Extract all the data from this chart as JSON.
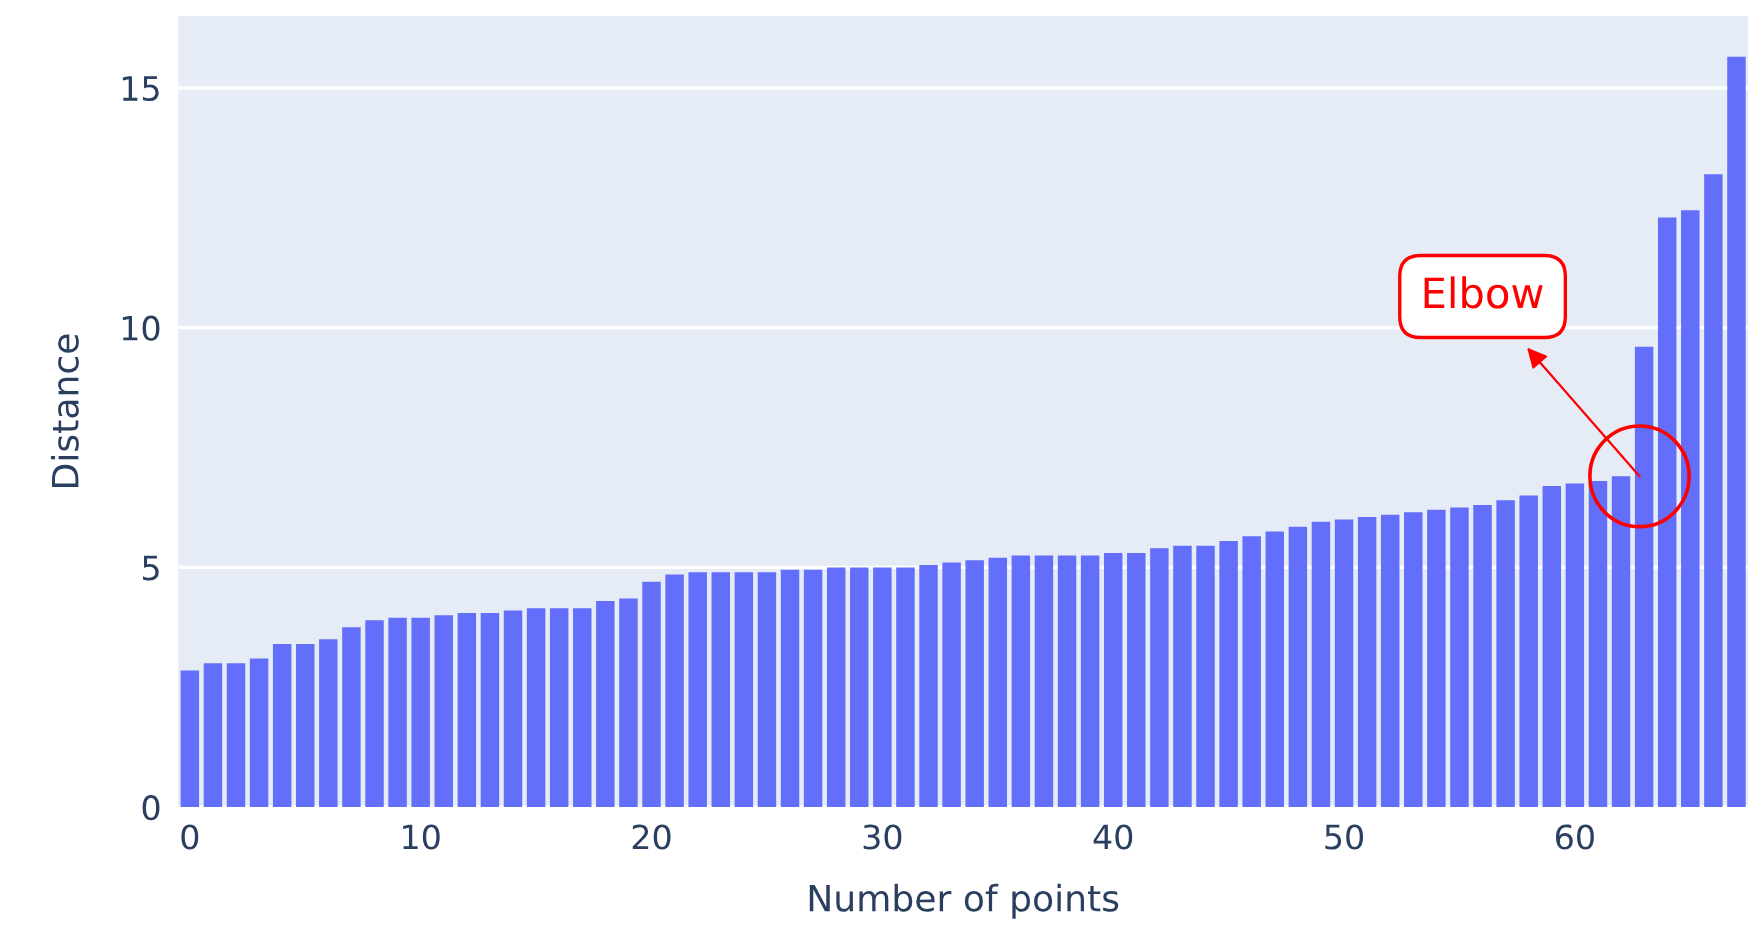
{
  "chart_data": {
    "type": "bar",
    "xlabel": "Number of points",
    "ylabel": "Distance",
    "x": [
      0,
      1,
      2,
      3,
      4,
      5,
      6,
      7,
      8,
      9,
      10,
      11,
      12,
      13,
      14,
      15,
      16,
      17,
      18,
      19,
      20,
      21,
      22,
      23,
      24,
      25,
      26,
      27,
      28,
      29,
      30,
      31,
      32,
      33,
      34,
      35,
      36,
      37,
      38,
      39,
      40,
      41,
      42,
      43,
      44,
      45,
      46,
      47,
      48,
      49,
      50,
      51,
      52,
      53,
      54,
      55,
      56,
      57,
      58,
      59,
      60,
      61,
      62,
      63,
      64,
      65,
      66,
      67
    ],
    "values": [
      2.85,
      3.0,
      3.0,
      3.1,
      3.4,
      3.4,
      3.5,
      3.75,
      3.9,
      3.95,
      3.95,
      4.0,
      4.05,
      4.05,
      4.1,
      4.15,
      4.15,
      4.15,
      4.3,
      4.35,
      4.7,
      4.85,
      4.9,
      4.9,
      4.9,
      4.9,
      4.95,
      4.95,
      5.0,
      5.0,
      5.0,
      5.0,
      5.05,
      5.1,
      5.15,
      5.2,
      5.25,
      5.25,
      5.25,
      5.25,
      5.3,
      5.3,
      5.4,
      5.45,
      5.45,
      5.55,
      5.65,
      5.75,
      5.85,
      5.95,
      6.0,
      6.05,
      6.1,
      6.15,
      6.2,
      6.25,
      6.3,
      6.4,
      6.5,
      6.7,
      6.75,
      6.8,
      6.9,
      9.6,
      12.3,
      12.45,
      13.2,
      15.65
    ],
    "color": "#636efa",
    "xlim": [
      -0.5,
      67.5
    ],
    "ylim": [
      0,
      16.5
    ],
    "xticks": [
      0,
      10,
      20,
      30,
      40,
      50,
      60
    ],
    "yticks": [
      0,
      5,
      10,
      15
    ],
    "grid": "y",
    "annotations": [
      {
        "text": "Elbow",
        "x": 62.8,
        "y": 6.9
      }
    ]
  }
}
